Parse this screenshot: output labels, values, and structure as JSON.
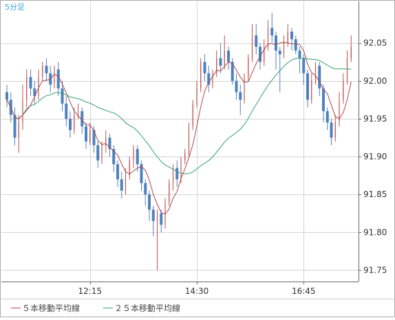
{
  "chart_data": {
    "type": "candlestick",
    "timeframe_label": "5分足",
    "x_tick_labels": [
      "12:15",
      "14:30",
      "16:45"
    ],
    "y_tick_labels": [
      "92.05",
      "92.00",
      "91.95",
      "91.90",
      "91.85",
      "91.80",
      "91.75"
    ],
    "y_ticks": [
      92.05,
      92.0,
      91.95,
      91.9,
      91.85,
      91.8,
      91.75
    ],
    "ylim": [
      91.735,
      92.105
    ],
    "grid": true,
    "legend_position": "bottom-left",
    "colors": {
      "up": "#c0504d",
      "down": "#4f81bd",
      "ma5": "#a9454f",
      "ma25": "#2f9e6e",
      "grid": "#d4d4d4",
      "axis": "#666666"
    },
    "legend": [
      {
        "key": "ma5",
        "label": "５本移動平均線",
        "color": "#a9454f"
      },
      {
        "key": "ma25",
        "label": "２５本移動平均線",
        "color": "#2f9e6e"
      }
    ],
    "candles": [
      [
        91.985,
        91.975,
        91.995,
        91.965
      ],
      [
        91.975,
        91.955,
        91.985,
        91.945
      ],
      [
        91.955,
        91.925,
        91.965,
        91.915
      ],
      [
        91.925,
        91.945,
        91.955,
        91.905
      ],
      [
        91.945,
        91.975,
        91.995,
        91.935
      ],
      [
        91.975,
        92.005,
        92.015,
        91.965
      ],
      [
        92.005,
        91.99,
        92.015,
        91.98
      ],
      [
        91.99,
        91.98,
        92.0,
        91.97
      ],
      [
        91.98,
        92.005,
        92.015,
        91.975
      ],
      [
        92.005,
        92.02,
        92.025,
        92.0
      ],
      [
        92.02,
        92.01,
        92.03,
        92.0
      ],
      [
        92.01,
        91.995,
        92.02,
        91.985
      ],
      [
        91.995,
        92.015,
        92.02,
        91.99
      ],
      [
        92.015,
        91.99,
        92.025,
        91.98
      ],
      [
        91.99,
        91.97,
        92.0,
        91.96
      ],
      [
        91.97,
        91.95,
        91.98,
        91.94
      ],
      [
        91.95,
        91.935,
        91.96,
        91.925
      ],
      [
        91.935,
        91.955,
        91.965,
        91.93
      ],
      [
        91.955,
        91.96,
        91.97,
        91.95
      ],
      [
        91.96,
        91.94,
        91.965,
        91.93
      ],
      [
        91.94,
        91.92,
        91.945,
        91.91
      ],
      [
        91.92,
        91.935,
        91.945,
        91.915
      ],
      [
        91.935,
        91.915,
        91.94,
        91.905
      ],
      [
        91.915,
        91.895,
        91.92,
        91.885
      ],
      [
        91.895,
        91.915,
        91.92,
        91.89
      ],
      [
        91.915,
        91.925,
        91.935,
        91.905
      ],
      [
        91.925,
        91.91,
        91.93,
        91.9
      ],
      [
        91.91,
        91.89,
        91.915,
        91.88
      ],
      [
        91.89,
        91.87,
        91.895,
        91.86
      ],
      [
        91.87,
        91.855,
        91.88,
        91.845
      ],
      [
        91.855,
        91.875,
        91.885,
        91.85
      ],
      [
        91.875,
        91.895,
        91.9,
        91.87
      ],
      [
        91.895,
        91.91,
        91.915,
        91.885
      ],
      [
        91.91,
        91.89,
        91.915,
        91.88
      ],
      [
        91.89,
        91.865,
        91.895,
        91.855
      ],
      [
        91.865,
        91.85,
        91.87,
        91.835
      ],
      [
        91.85,
        91.83,
        91.855,
        91.815
      ],
      [
        91.83,
        91.815,
        91.835,
        91.795
      ],
      [
        91.815,
        91.825,
        91.83,
        91.75
      ],
      [
        91.825,
        91.81,
        91.83,
        91.8
      ],
      [
        91.81,
        91.84,
        91.845,
        91.805
      ],
      [
        91.84,
        91.865,
        91.87,
        91.835
      ],
      [
        91.865,
        91.885,
        91.89,
        91.855
      ],
      [
        91.885,
        91.87,
        91.895,
        91.86
      ],
      [
        91.87,
        91.895,
        91.9,
        91.865
      ],
      [
        91.895,
        91.905,
        91.91,
        91.89
      ],
      [
        91.905,
        91.94,
        91.945,
        91.9
      ],
      [
        91.94,
        91.97,
        91.975,
        91.935
      ],
      [
        91.97,
        91.99,
        92.0,
        91.965
      ],
      [
        91.99,
        92.025,
        92.03,
        91.985
      ],
      [
        92.025,
        92.01,
        92.035,
        92.0
      ],
      [
        92.01,
        91.995,
        92.02,
        91.985
      ],
      [
        91.995,
        92.01,
        92.015,
        91.99
      ],
      [
        92.01,
        92.03,
        92.04,
        92.005
      ],
      [
        92.03,
        92.02,
        92.05,
        92.01
      ],
      [
        92.02,
        92.04,
        92.06,
        92.015
      ],
      [
        92.04,
        92.025,
        92.045,
        92.015
      ],
      [
        92.025,
        92.0,
        92.03,
        91.995
      ],
      [
        92.0,
        91.985,
        92.01,
        91.975
      ],
      [
        91.985,
        91.975,
        91.995,
        91.955
      ],
      [
        91.975,
        92.005,
        92.01,
        91.97
      ],
      [
        92.005,
        92.03,
        92.035,
        92.0
      ],
      [
        92.03,
        92.06,
        92.075,
        92.025
      ],
      [
        92.06,
        92.045,
        92.075,
        92.035
      ],
      [
        92.045,
        92.025,
        92.05,
        92.015
      ],
      [
        92.025,
        92.045,
        92.055,
        92.02
      ],
      [
        92.045,
        92.07,
        92.08,
        92.04
      ],
      [
        92.07,
        92.06,
        92.09,
        92.05
      ],
      [
        92.06,
        92.04,
        92.065,
        92.015
      ],
      [
        92.04,
        92.035,
        92.045,
        91.985
      ],
      [
        92.035,
        92.05,
        92.06,
        92.03
      ],
      [
        92.05,
        92.065,
        92.075,
        92.045
      ],
      [
        92.065,
        92.055,
        92.07,
        92.04
      ],
      [
        92.055,
        92.04,
        92.06,
        92.035
      ],
      [
        92.04,
        92.03,
        92.045,
        92.01
      ],
      [
        92.03,
        92.01,
        92.035,
        91.995
      ],
      [
        92.01,
        91.975,
        92.015,
        91.965
      ],
      [
        91.975,
        92.0,
        92.01,
        91.97
      ],
      [
        92.0,
        92.02,
        92.025,
        91.995
      ],
      [
        92.02,
        91.99,
        92.025,
        91.98
      ],
      [
        91.99,
        91.96,
        91.995,
        91.945
      ],
      [
        91.96,
        91.945,
        91.965,
        91.935
      ],
      [
        91.945,
        91.925,
        91.95,
        91.915
      ],
      [
        91.925,
        91.945,
        91.955,
        91.92
      ],
      [
        91.945,
        91.975,
        91.985,
        91.94
      ],
      [
        91.975,
        92.0,
        92.01,
        91.97
      ],
      [
        92.0,
        92.03,
        92.04,
        91.995
      ],
      [
        92.03,
        92.045,
        92.06,
        92.025
      ]
    ]
  }
}
